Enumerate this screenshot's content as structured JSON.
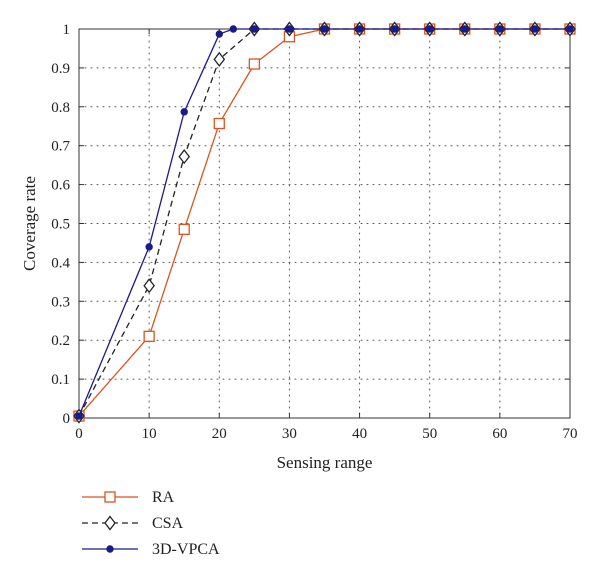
{
  "chart_data": {
    "type": "line",
    "xlabel": "Sensing range",
    "ylabel": "Coverage rate",
    "xlim": [
      0,
      70
    ],
    "ylim": [
      0,
      1
    ],
    "xticks": [
      0,
      10,
      20,
      30,
      40,
      50,
      60,
      70
    ],
    "yticks": [
      0,
      0.1,
      0.2,
      0.3,
      0.4,
      0.5,
      0.6,
      0.7,
      0.8,
      0.9,
      1
    ],
    "grid": true,
    "legend_position": "bottom-left",
    "series": [
      {
        "name": "RA",
        "color": "#d9541e",
        "marker": "square",
        "dash": "solid",
        "x": [
          0,
          10,
          15,
          20,
          25,
          30,
          35,
          40,
          45,
          50,
          55,
          60,
          65,
          70
        ],
        "y": [
          0.005,
          0.21,
          0.485,
          0.757,
          0.91,
          0.98,
          1,
          1,
          1,
          1,
          1,
          1,
          1,
          1
        ]
      },
      {
        "name": "CSA",
        "color": "#222222",
        "marker": "diamond",
        "dash": "dashed",
        "x": [
          0,
          10,
          15,
          20,
          25,
          30,
          35,
          40,
          45,
          50,
          55,
          60,
          65,
          70
        ],
        "y": [
          0.005,
          0.34,
          0.672,
          0.922,
          1,
          1,
          1,
          1,
          1,
          1,
          1,
          1,
          1,
          1
        ]
      },
      {
        "name": "3D-VPCA",
        "color": "#1a1a8c",
        "marker": "dot",
        "dash": "solid",
        "x": [
          0,
          10,
          15,
          20,
          22,
          25,
          30,
          35,
          40,
          45,
          50,
          55,
          60,
          65,
          70
        ],
        "y": [
          0.005,
          0.44,
          0.787,
          0.987,
          1,
          1,
          1,
          1,
          1,
          1,
          1,
          1,
          1,
          1,
          1
        ]
      }
    ]
  }
}
